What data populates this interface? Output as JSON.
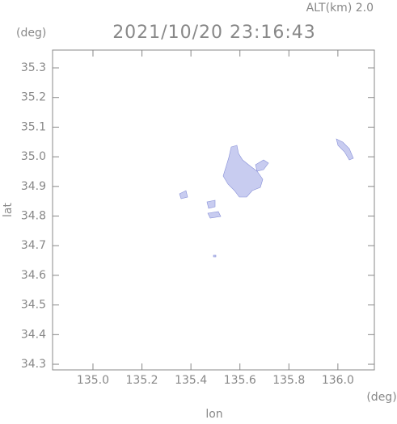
{
  "chart_data": {
    "type": "map",
    "title": "2021/10/20 23:16:43",
    "altitude_label": "ALT(km)  2.0",
    "y_unit": "(deg)",
    "x_unit": "(deg)",
    "xlabel": "lon",
    "ylabel": "lat",
    "xlim": [
      134.835,
      136.149
    ],
    "ylim": [
      34.281,
      35.36
    ],
    "xticks": [
      {
        "value": 135.0,
        "label": "135.0"
      },
      135.2,
      135.4,
      135.6,
      135.8,
      {
        "value": 136.0,
        "label": "136.0"
      }
    ],
    "yticks": [
      34.3,
      34.4,
      34.5,
      34.6,
      34.7,
      34.8,
      34.9,
      {
        "value": 35.0,
        "label": "35.0"
      },
      35.1,
      35.2,
      35.3
    ],
    "color": "#c8ccf0"
  }
}
